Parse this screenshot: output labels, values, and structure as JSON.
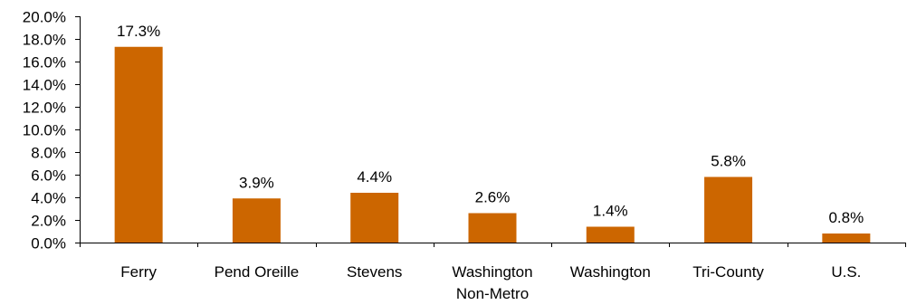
{
  "chart_data": {
    "type": "bar",
    "title": "",
    "xlabel": "",
    "ylabel": "",
    "categories": [
      [
        "Ferry"
      ],
      [
        "Pend Oreille"
      ],
      [
        "Stevens"
      ],
      [
        "Washington",
        "Non-Metro"
      ],
      [
        "Washington"
      ],
      [
        "Tri-County"
      ],
      [
        "U.S."
      ]
    ],
    "values": [
      17.3,
      3.9,
      4.4,
      2.6,
      1.4,
      5.8,
      0.8
    ],
    "data_labels": [
      "17.3%",
      "3.9%",
      "4.4%",
      "2.6%",
      "1.4%",
      "5.8%",
      "0.8%"
    ],
    "ylim": [
      0,
      20
    ],
    "y_ticks": [
      0,
      2,
      4,
      6,
      8,
      10,
      12,
      14,
      16,
      18,
      20
    ],
    "y_tick_labels": [
      "0.0%",
      "2.0%",
      "4.0%",
      "6.0%",
      "8.0%",
      "10.0%",
      "12.0%",
      "14.0%",
      "16.0%",
      "18.0%",
      "20.0%"
    ],
    "grid": false,
    "legend": "none",
    "bar_color": "#CC6600"
  }
}
